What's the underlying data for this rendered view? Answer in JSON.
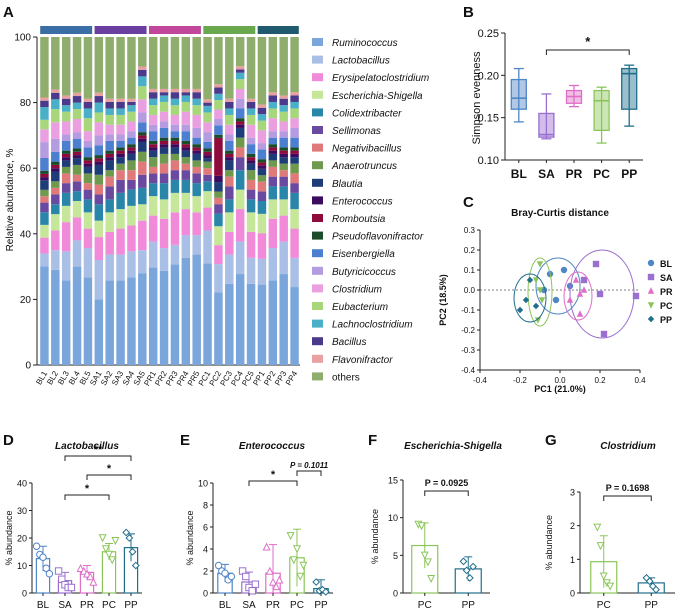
{
  "panel_letters": [
    "A",
    "B",
    "C",
    "D",
    "E",
    "F",
    "G"
  ],
  "colors": {
    "groups": {
      "BL": "#4f86c6",
      "SA": "#9a6fd0",
      "PR": "#e06ec8",
      "PC": "#8bc55a",
      "PP": "#1f6e8c"
    },
    "bar_top": [
      "#3a6ea5",
      "#6b3fa0",
      "#c0479a",
      "#6aa84f",
      "#1f5a6e"
    ]
  },
  "chart_data": [
    {
      "panel": "A",
      "type": "bar",
      "stacked": true,
      "ylabel": "Relative abundance, %",
      "ylim": [
        0,
        100
      ],
      "yticks": [
        0,
        20,
        40,
        60,
        80,
        100
      ],
      "samples": [
        "BL1",
        "BL2",
        "BL3",
        "BL4",
        "BL5",
        "SA1",
        "SA2",
        "SA3",
        "SA4",
        "SA5",
        "PR1",
        "PR2",
        "PR3",
        "PR4",
        "PR5",
        "PC1",
        "PC2",
        "PC3",
        "PC4",
        "PC5",
        "PP1",
        "PP2",
        "PP3",
        "PP4"
      ],
      "group_bar_sizes": [
        5,
        5,
        5,
        5,
        4
      ],
      "legend": [
        {
          "name": "Ruminococcus",
          "color": "#7aa6dc"
        },
        {
          "name": "Lactobacillus",
          "color": "#a9bfe6"
        },
        {
          "name": "Erysipelatoclostridium",
          "color": "#f08ad9"
        },
        {
          "name": "Escherichia-Shigella",
          "color": "#c6e79a"
        },
        {
          "name": "Colidextribacter",
          "color": "#2a86a8"
        },
        {
          "name": "Sellimonas",
          "color": "#6a4aa0"
        },
        {
          "name": "Negativibacillus",
          "color": "#e07a7a"
        },
        {
          "name": "Anaerotruncus",
          "color": "#6f9a4e"
        },
        {
          "name": "Blautia",
          "color": "#1d3c78"
        },
        {
          "name": "Enterococcus",
          "color": "#3a0b5e"
        },
        {
          "name": "Romboutsia",
          "color": "#8e0b3c"
        },
        {
          "name": "Pseudoflavonifractor",
          "color": "#1b4d2a"
        },
        {
          "name": "Eisenbergiella",
          "color": "#4c7fcf"
        },
        {
          "name": "Butyricicoccus",
          "color": "#b59be0"
        },
        {
          "name": "Clostridium",
          "color": "#ea9fe0"
        },
        {
          "name": "Eubacterium",
          "color": "#a8d67a"
        },
        {
          "name": "Lachnoclostridium",
          "color": "#4ab0c8"
        },
        {
          "name": "Bacillus",
          "color": "#4b3a8c"
        },
        {
          "name": "Flavonifractor",
          "color": "#e8a0a0"
        },
        {
          "name": "others",
          "color": "#8fae6e"
        }
      ],
      "values": [
        [
          31,
          4,
          5,
          4,
          4,
          3,
          2,
          2,
          3,
          1,
          1,
          1,
          4,
          5,
          4,
          3,
          4,
          2,
          1,
          19
        ],
        [
          29,
          6,
          6,
          5,
          3,
          3,
          2,
          2,
          3,
          1,
          1,
          1,
          3,
          4,
          5,
          4,
          3,
          2,
          1,
          16
        ],
        [
          26,
          9,
          9,
          5,
          4,
          3,
          3,
          2,
          2,
          1,
          1,
          1,
          3,
          2,
          4,
          3,
          2,
          2,
          1,
          18
        ],
        [
          30,
          8,
          7,
          5,
          3,
          3,
          2,
          3,
          2,
          1,
          1,
          1,
          3,
          2,
          4,
          3,
          2,
          2,
          1,
          17
        ],
        [
          27,
          9,
          6,
          5,
          4,
          3,
          2,
          3,
          2,
          1,
          1,
          1,
          3,
          2,
          3,
          4,
          3,
          2,
          1,
          19
        ],
        [
          20,
          12,
          7,
          5,
          5,
          3,
          3,
          3,
          3,
          1,
          1,
          1,
          3,
          3,
          4,
          3,
          3,
          2,
          1,
          17
        ],
        [
          26,
          8,
          7,
          6,
          4,
          4,
          3,
          2,
          3,
          1,
          1,
          1,
          3,
          2,
          3,
          3,
          2,
          2,
          1,
          19
        ],
        [
          26,
          8,
          8,
          6,
          5,
          4,
          3,
          2,
          2,
          1,
          1,
          1,
          2,
          2,
          3,
          3,
          2,
          2,
          1,
          19
        ],
        [
          27,
          8,
          8,
          6,
          5,
          3,
          3,
          3,
          2,
          1,
          1,
          1,
          2,
          2,
          3,
          3,
          2,
          1,
          1,
          19
        ],
        [
          28,
          7,
          9,
          5,
          5,
          4,
          4,
          3,
          3,
          1,
          1,
          1,
          3,
          3,
          4,
          4,
          3,
          2,
          1,
          9
        ],
        [
          30,
          8,
          8,
          6,
          4,
          3,
          2,
          3,
          2,
          1,
          1,
          1,
          3,
          2,
          3,
          3,
          2,
          2,
          1,
          16
        ],
        [
          29,
          7,
          9,
          6,
          5,
          3,
          3,
          3,
          2,
          1,
          1,
          1,
          3,
          2,
          3,
          3,
          2,
          1,
          1,
          16
        ],
        [
          31,
          6,
          10,
          6,
          4,
          3,
          3,
          2,
          2,
          1,
          1,
          1,
          2,
          2,
          3,
          3,
          2,
          2,
          1,
          16
        ],
        [
          33,
          7,
          8,
          5,
          4,
          3,
          2,
          2,
          2,
          1,
          1,
          1,
          3,
          2,
          4,
          3,
          2,
          1,
          1,
          16
        ],
        [
          34,
          6,
          7,
          5,
          4,
          3,
          2,
          2,
          2,
          1,
          1,
          1,
          2,
          3,
          4,
          3,
          2,
          2,
          1,
          16
        ],
        [
          31,
          10,
          7,
          5,
          3,
          2,
          2,
          2,
          1,
          1,
          1,
          1,
          2,
          3,
          3,
          3,
          2,
          1,
          1,
          19
        ],
        [
          23,
          9,
          6,
          6,
          4,
          3,
          2,
          2,
          3,
          2,
          12,
          1,
          3,
          2,
          3,
          3,
          2,
          2,
          1,
          15
        ],
        [
          25,
          9,
          7,
          6,
          4,
          4,
          3,
          2,
          3,
          1,
          1,
          1,
          3,
          2,
          3,
          3,
          2,
          2,
          1,
          19
        ],
        [
          28,
          10,
          10,
          6,
          6,
          4,
          3,
          3,
          3,
          1,
          1,
          1,
          3,
          3,
          3,
          3,
          2,
          1,
          1,
          9
        ],
        [
          25,
          8,
          8,
          6,
          4,
          3,
          3,
          3,
          2,
          1,
          1,
          1,
          3,
          2,
          4,
          3,
          2,
          2,
          1,
          19
        ],
        [
          25,
          8,
          8,
          6,
          4,
          3,
          3,
          2,
          2,
          1,
          1,
          1,
          3,
          2,
          4,
          3,
          2,
          2,
          1,
          21
        ],
        [
          26,
          10,
          9,
          6,
          4,
          3,
          3,
          2,
          2,
          1,
          1,
          1,
          2,
          2,
          4,
          3,
          2,
          2,
          1,
          17
        ],
        [
          28,
          10,
          8,
          5,
          4,
          3,
          2,
          2,
          2,
          1,
          1,
          1,
          3,
          2,
          3,
          3,
          2,
          2,
          1,
          18
        ],
        [
          24,
          9,
          9,
          6,
          5,
          3,
          3,
          3,
          2,
          1,
          1,
          1,
          3,
          3,
          3,
          3,
          2,
          2,
          1,
          17
        ]
      ]
    },
    {
      "panel": "B",
      "type": "box",
      "ylabel": "Simpson evenness",
      "ylim": [
        0.1,
        0.25
      ],
      "yticks": [
        0.1,
        0.15,
        0.2,
        0.25
      ],
      "categories": [
        "BL",
        "SA",
        "PR",
        "PC",
        "PP"
      ],
      "boxes": [
        {
          "min": 0.145,
          "q1": 0.16,
          "median": 0.173,
          "q3": 0.195,
          "max": 0.208
        },
        {
          "min": 0.125,
          "q1": 0.127,
          "median": 0.13,
          "q3": 0.155,
          "max": 0.178
        },
        {
          "min": 0.163,
          "q1": 0.167,
          "median": 0.175,
          "q3": 0.182,
          "max": 0.188
        },
        {
          "min": 0.12,
          "q1": 0.135,
          "median": 0.17,
          "q3": 0.182,
          "max": 0.186
        },
        {
          "min": 0.14,
          "q1": 0.16,
          "median": 0.202,
          "q3": 0.208,
          "max": 0.212
        }
      ],
      "significance": [
        {
          "from": "SA",
          "to": "PP",
          "label": "*"
        }
      ]
    },
    {
      "panel": "C",
      "type": "scatter",
      "title": "Bray-Curtis distance",
      "xlabel": "PC1 (21.0%)",
      "ylabel": "PC2 (18.5%)",
      "xlim": [
        -0.4,
        0.4
      ],
      "ylim": [
        -0.4,
        0.3
      ],
      "xticks": [
        -0.4,
        -0.2,
        0.0,
        0.2,
        0.4
      ],
      "yticks": [
        -0.4,
        -0.3,
        -0.2,
        -0.1,
        0.0,
        0.1,
        0.2,
        0.3
      ],
      "legend": [
        "BL",
        "SA",
        "PR",
        "PC",
        "PP"
      ],
      "series": [
        {
          "name": "BL",
          "points": [
            [
              -0.05,
              0.08
            ],
            [
              0.02,
              0.1
            ],
            [
              -0.08,
              0.0
            ],
            [
              0.05,
              0.02
            ],
            [
              -0.02,
              -0.05
            ]
          ],
          "ellipse": {
            "cx": -0.01,
            "cy": 0.02,
            "rx": 0.11,
            "ry": 0.14
          }
        },
        {
          "name": "SA",
          "points": [
            [
              0.18,
              0.13
            ],
            [
              0.38,
              -0.03
            ],
            [
              0.22,
              -0.22
            ],
            [
              0.12,
              0.05
            ],
            [
              0.2,
              -0.02
            ]
          ],
          "ellipse": {
            "cx": 0.21,
            "cy": -0.02,
            "rx": 0.16,
            "ry": 0.22
          }
        },
        {
          "name": "PR",
          "points": [
            [
              0.1,
              -0.02
            ],
            [
              0.05,
              -0.05
            ],
            [
              0.12,
              0.0
            ],
            [
              0.08,
              0.05
            ],
            [
              0.1,
              -0.12
            ]
          ],
          "ellipse": {
            "cx": 0.09,
            "cy": -0.03,
            "rx": 0.07,
            "ry": 0.12
          }
        },
        {
          "name": "PC",
          "points": [
            [
              -0.1,
              0.13
            ],
            [
              -0.12,
              0.05
            ],
            [
              -0.09,
              -0.05
            ],
            [
              -0.11,
              -0.15
            ],
            [
              -0.1,
              0.0
            ]
          ],
          "ellipse": {
            "cx": -0.1,
            "cy": -0.01,
            "rx": 0.06,
            "ry": 0.17
          }
        },
        {
          "name": "PP",
          "points": [
            [
              -0.15,
              0.05
            ],
            [
              -0.2,
              -0.1
            ],
            [
              -0.17,
              -0.05
            ],
            [
              -0.12,
              -0.08
            ]
          ],
          "ellipse": {
            "cx": -0.15,
            "cy": -0.04,
            "rx": 0.08,
            "ry": 0.12
          }
        }
      ]
    },
    {
      "panel": "D",
      "type": "bar",
      "title": "Lactobacillus",
      "ylabel": "% abundance",
      "ylim": [
        0,
        40
      ],
      "yticks": [
        0,
        10,
        20,
        30,
        40
      ],
      "categories": [
        "BL",
        "SA",
        "PR",
        "PC",
        "PP"
      ],
      "means": [
        12.5,
        4.5,
        7.5,
        15,
        16.5
      ],
      "sd": [
        4.5,
        3,
        2.5,
        3,
        5
      ],
      "points": [
        [
          17,
          14,
          13,
          9,
          7
        ],
        [
          8,
          5,
          3,
          2,
          2
        ],
        [
          9,
          8,
          7,
          6,
          4
        ],
        [
          20,
          16,
          14,
          12,
          19
        ],
        [
          22,
          20,
          15,
          10
        ]
      ],
      "significance": [
        {
          "from": "SA",
          "to": "PP",
          "label": "**"
        },
        {
          "from": "PR",
          "to": "PP",
          "label": "*"
        },
        {
          "from": "SA",
          "to": "PC",
          "label": "*"
        }
      ]
    },
    {
      "panel": "E",
      "type": "bar",
      "title": "Enterococcus",
      "ylabel": "% abundance",
      "ylim": [
        0,
        10
      ],
      "yticks": [
        0,
        2,
        4,
        6,
        8,
        10
      ],
      "categories": [
        "BL",
        "SA",
        "PR",
        "PC",
        "PP"
      ],
      "means": [
        1.8,
        1.0,
        1.8,
        3.2,
        0.4
      ],
      "sd": [
        0.8,
        0.9,
        2.6,
        2.6,
        0.8
      ],
      "points": [
        [
          2.5,
          2.0,
          1.8,
          1.2,
          1.5
        ],
        [
          2.0,
          1.5,
          0.5,
          0.2,
          0.8
        ],
        [
          4.2,
          2.0,
          1.0,
          0.6,
          1.2
        ],
        [
          5.2,
          3.0,
          4.0,
          1.5,
          2.5
        ],
        [
          1.0,
          0.2,
          0.3,
          0.1
        ]
      ],
      "significance": [
        {
          "from": "SA",
          "to": "PC",
          "label": "*"
        },
        {
          "from": "PC",
          "to": "PP",
          "label": "P = 0.1011"
        }
      ]
    },
    {
      "panel": "F",
      "type": "bar",
      "title": "Escherichia-Shigella",
      "ylabel": "% abundance",
      "ylim": [
        0,
        15
      ],
      "yticks": [
        0,
        5,
        10,
        15
      ],
      "categories": [
        "PC",
        "PP"
      ],
      "means": [
        6.3,
        3.2
      ],
      "sd": [
        3.0,
        1.6
      ],
      "points": [
        [
          9.1,
          8.9,
          5.0,
          4.1,
          1.9
        ],
        [
          4.2,
          3.0,
          2.0,
          3.5
        ]
      ],
      "significance": [
        {
          "from": "PC",
          "to": "PP",
          "label": "P = 0.0925"
        }
      ]
    },
    {
      "panel": "G",
      "type": "bar",
      "title": "Clostridium",
      "ylabel": "% abundance",
      "ylim": [
        0,
        3
      ],
      "yticks": [
        0,
        1,
        2,
        3
      ],
      "categories": [
        "PC",
        "PP"
      ],
      "means": [
        0.93,
        0.3
      ],
      "sd": [
        0.77,
        0.15
      ],
      "points": [
        [
          1.95,
          1.4,
          0.5,
          0.3,
          0.2
        ],
        [
          0.45,
          0.35,
          0.2,
          0.1
        ]
      ],
      "significance": [
        {
          "from": "PC",
          "to": "PP",
          "label": "P = 0.1698"
        }
      ]
    }
  ]
}
